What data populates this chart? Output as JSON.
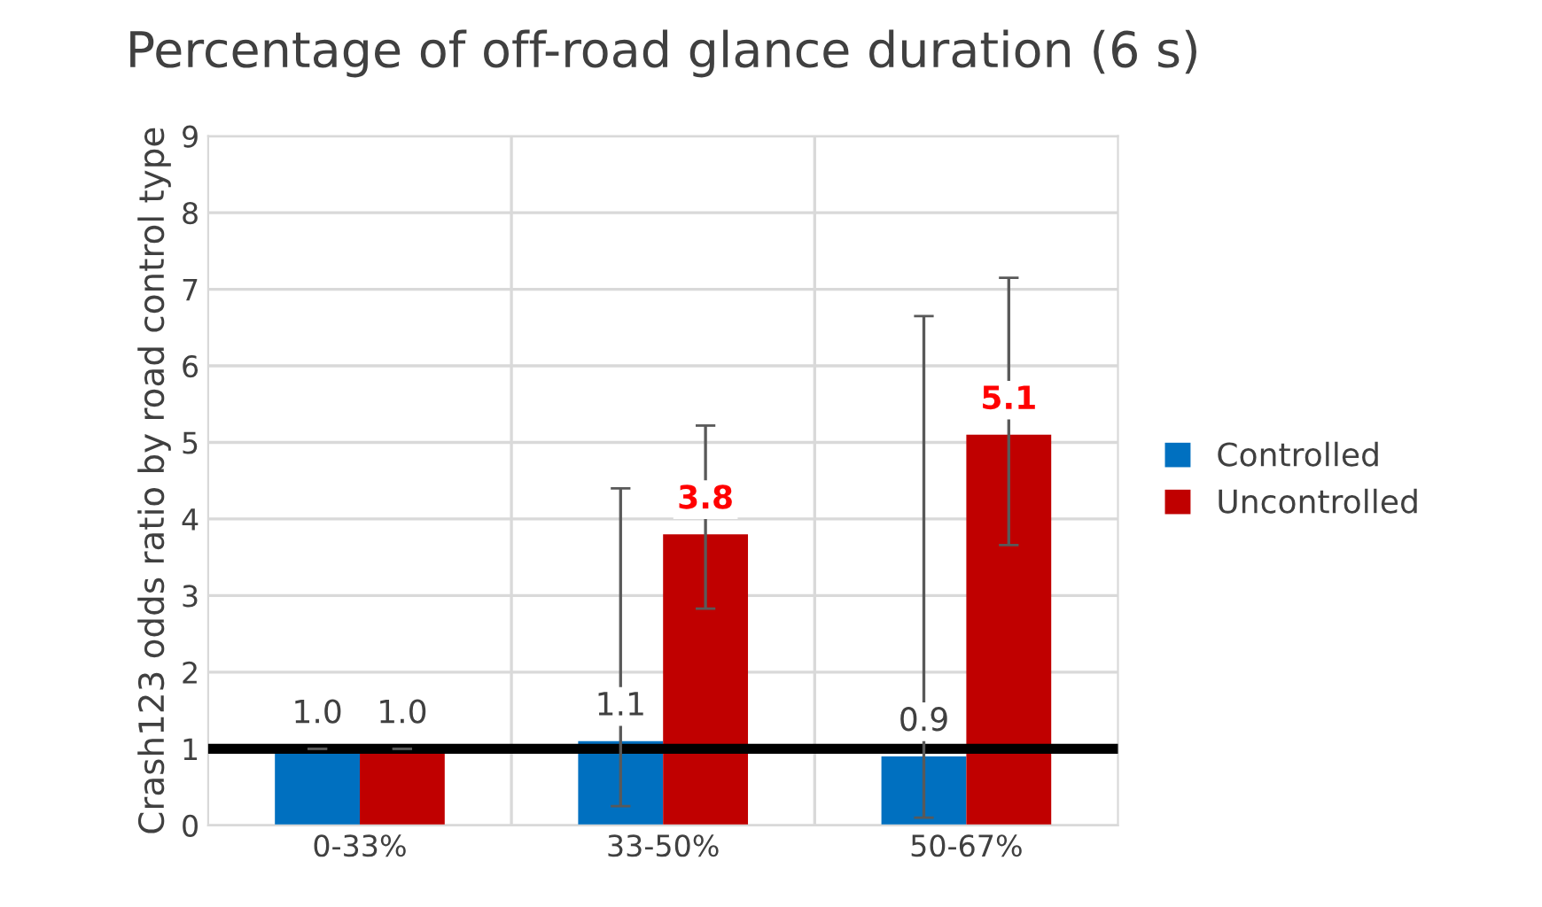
{
  "chart_data": {
    "type": "bar",
    "title": "Percentage of off-road glance duration (6 s)",
    "ylabel": "Crash123 odds ratio by road control type",
    "categories": [
      "0-33%",
      "33-50%",
      "50-67%"
    ],
    "series": [
      {
        "name": "Controlled",
        "color": "#0070c0",
        "values": [
          1.0,
          1.1,
          0.9
        ],
        "errors": [
          0,
          [
            0.25,
            4.4
          ],
          [
            0.1,
            6.65
          ]
        ],
        "value_labels": [
          "1.0",
          "1.1",
          "0.9"
        ]
      },
      {
        "name": "Uncontrolled",
        "color": "#c00000",
        "values": [
          1.0,
          3.8,
          5.1
        ],
        "errors": [
          0,
          [
            2.83,
            5.22
          ],
          [
            3.66,
            7.15
          ]
        ],
        "value_labels": [
          "1.0",
          "3.8",
          "5.1"
        ]
      }
    ],
    "ylim": [
      0,
      9
    ],
    "yticks": [
      0,
      1,
      2,
      3,
      4,
      5,
      6,
      7,
      8,
      9
    ],
    "grid": true,
    "legend": "right",
    "ref_lines": [
      {
        "axis": "y",
        "value": 1,
        "color": "#000000"
      }
    ]
  }
}
